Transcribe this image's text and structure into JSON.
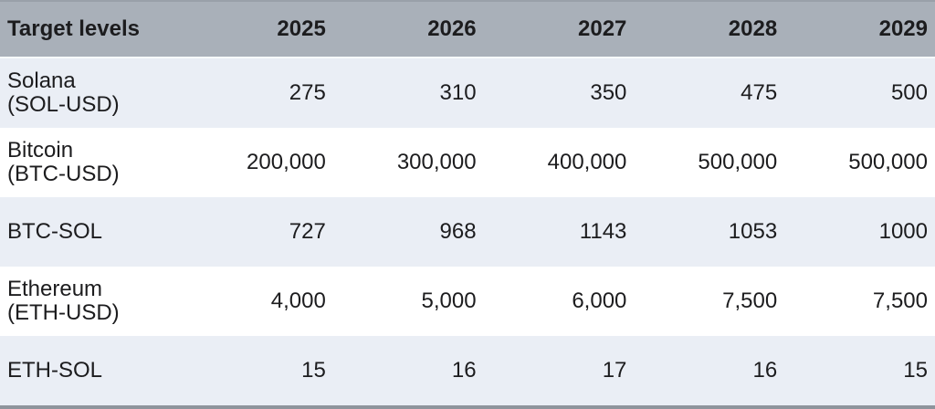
{
  "chart_data": {
    "type": "table",
    "title": "Target levels",
    "columns": [
      "2025",
      "2026",
      "2027",
      "2028",
      "2029"
    ],
    "rows": [
      {
        "label": "Solana",
        "sublabel": "(SOL-USD)",
        "values": [
          "275",
          "310",
          "350",
          "475",
          "500"
        ]
      },
      {
        "label": "Bitcoin",
        "sublabel": "(BTC-USD)",
        "values": [
          "200,000",
          "300,000",
          "400,000",
          "500,000",
          "500,000"
        ]
      },
      {
        "label": "BTC-SOL",
        "sublabel": "",
        "values": [
          "727",
          "968",
          "1143",
          "1053",
          "1000"
        ]
      },
      {
        "label": "Ethereum",
        "sublabel": "(ETH-USD)",
        "values": [
          "4,000",
          "5,000",
          "6,000",
          "7,500",
          "7,500"
        ]
      },
      {
        "label": "ETH-SOL",
        "sublabel": "",
        "values": [
          "15",
          "16",
          "17",
          "16",
          "15"
        ]
      }
    ]
  },
  "colors": {
    "header_bg": "#a9b0b9",
    "stripe_row_bg": "#eaeef5",
    "white_row_bg": "#ffffff",
    "top_border": "#99a0a9",
    "bottom_border": "#8e949c",
    "text": "#1c1c1e"
  }
}
